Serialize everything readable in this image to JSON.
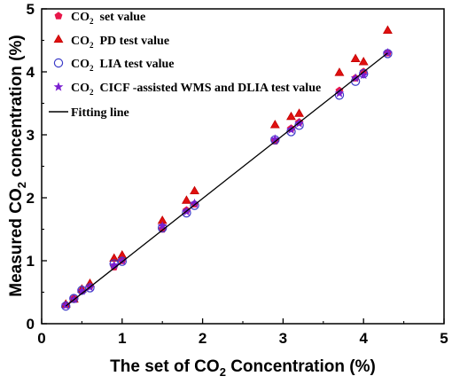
{
  "chart_data": {
    "type": "scatter",
    "xlabel": {
      "pre": "The set  of CO",
      "sub": "2",
      "post": " Concentration  (%)"
    },
    "ylabel": {
      "pre": "Measured CO",
      "sub": "2",
      "post": " concentration (%)"
    },
    "xlim": [
      0,
      5
    ],
    "ylim": [
      0,
      5
    ],
    "xticks": [
      0,
      1,
      2,
      3,
      4,
      5
    ],
    "yticks": [
      0,
      1,
      2,
      3,
      4,
      5
    ],
    "grid": false,
    "legend_position": "top-left",
    "x": [
      0.3,
      0.4,
      0.5,
      0.6,
      0.9,
      1.0,
      1.5,
      1.8,
      1.9,
      2.9,
      3.1,
      3.2,
      3.7,
      3.9,
      4.0,
      4.3
    ],
    "series": [
      {
        "name": {
          "pre": "CO",
          "sub": "2",
          "post": "  set value"
        },
        "marker": "pentagon",
        "color": "#e8174a",
        "values": [
          0.3,
          0.4,
          0.52,
          0.6,
          0.9,
          1.0,
          1.5,
          1.8,
          1.9,
          2.9,
          3.1,
          3.2,
          3.7,
          3.9,
          4.0,
          4.3
        ]
      },
      {
        "name": {
          "pre": "CO",
          "sub": "2",
          "post": "  PD test value"
        },
        "marker": "triangle",
        "color": "#e01010",
        "values": [
          0.3,
          0.38,
          0.54,
          0.63,
          1.03,
          1.08,
          1.63,
          1.95,
          2.1,
          3.15,
          3.28,
          3.33,
          3.98,
          4.2,
          4.15,
          4.65
        ]
      },
      {
        "name": {
          "pre": "CO",
          "sub": "2",
          "post": "  LIA test value"
        },
        "marker": "circle",
        "color": "#3b3bc8",
        "values": [
          0.28,
          0.4,
          0.53,
          0.57,
          0.95,
          0.99,
          1.52,
          1.76,
          1.88,
          2.92,
          3.05,
          3.15,
          3.63,
          3.85,
          3.97,
          4.29
        ]
      },
      {
        "name": {
          "pre": "CO",
          "sub": "2",
          "post": "  CICF -assisted WMS and DLIA test value"
        },
        "marker": "star",
        "color": "#7a1fd0",
        "values": [
          0.29,
          0.39,
          0.52,
          0.58,
          0.93,
          1.0,
          1.55,
          1.78,
          1.91,
          2.93,
          3.08,
          3.18,
          3.66,
          3.9,
          3.95,
          4.3
        ]
      }
    ],
    "fit_line": {
      "name": "Fitting line",
      "x": [
        0.3,
        4.3
      ],
      "y": [
        0.28,
        4.3
      ],
      "color": "#000000"
    }
  }
}
